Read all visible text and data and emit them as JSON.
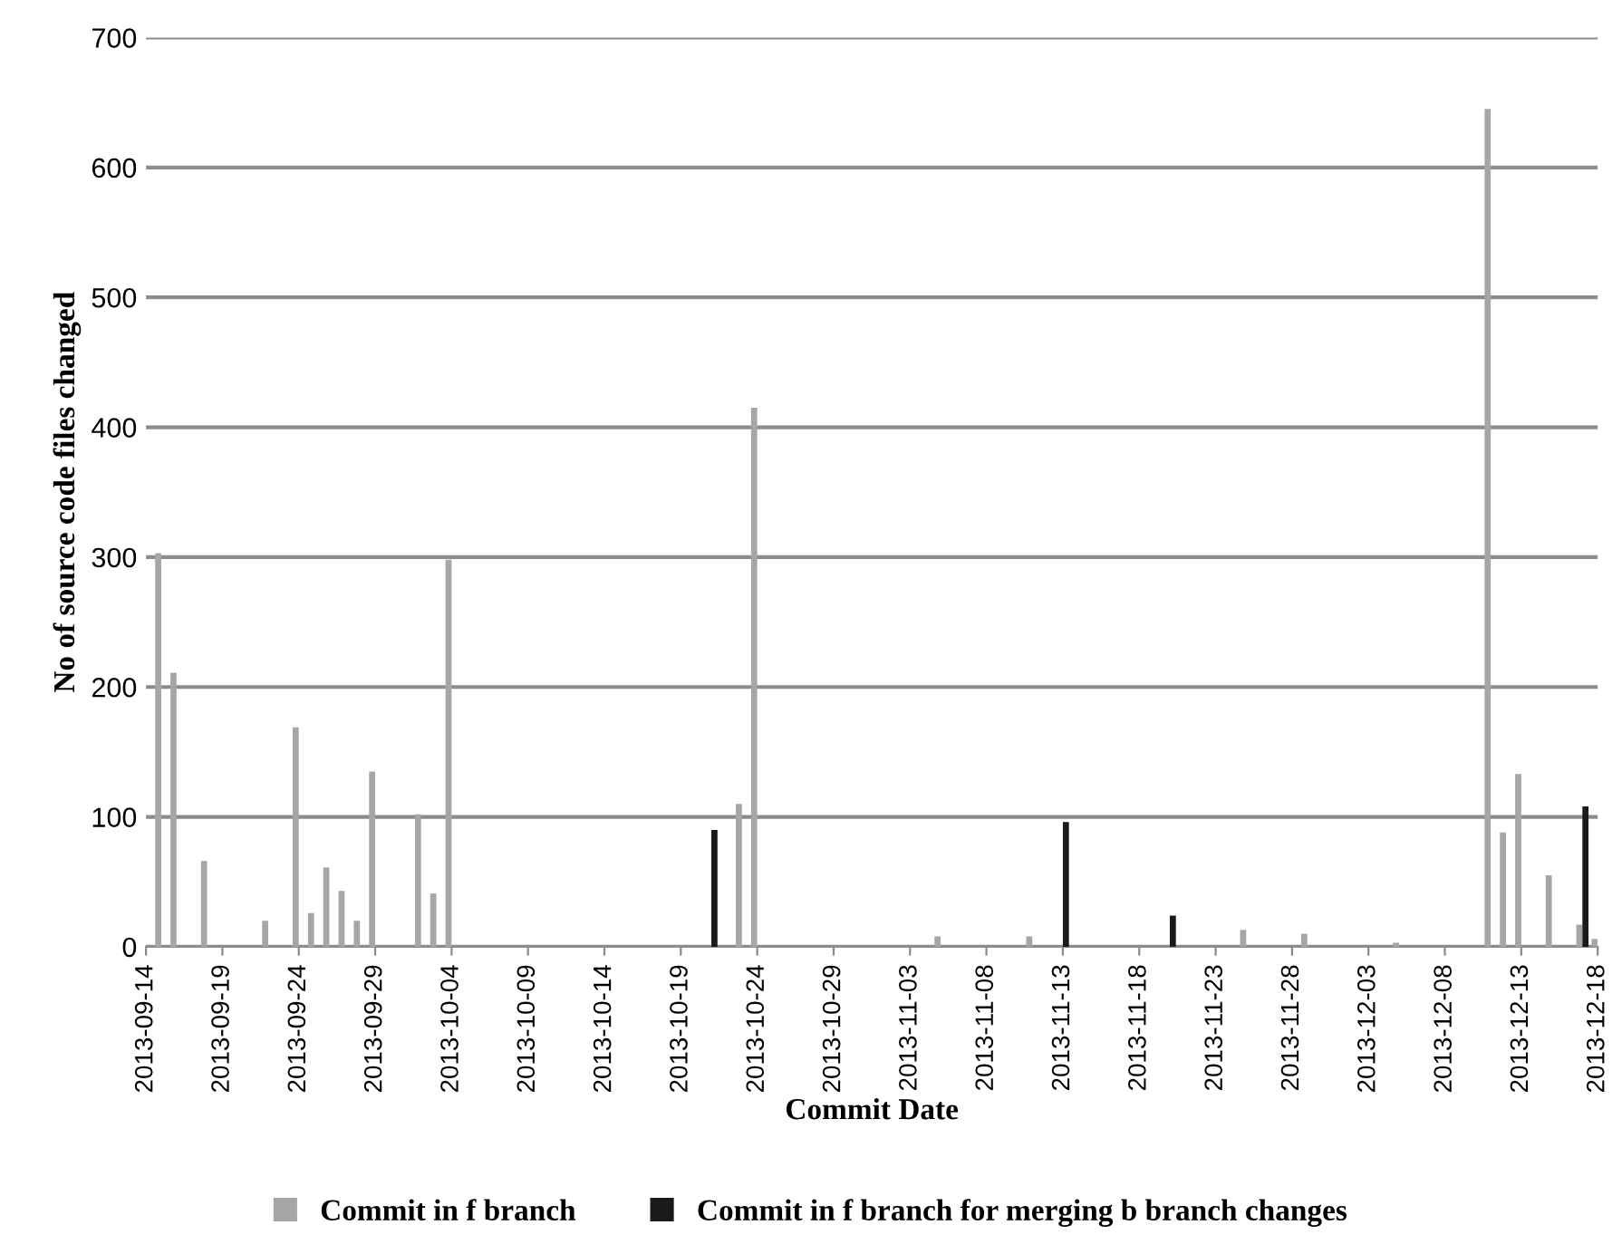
{
  "chart_data": {
    "type": "bar",
    "xlabel": "Commit Date",
    "ylabel": "No of source code files changed",
    "xlim": [
      "2013-09-14",
      "2013-12-18"
    ],
    "xticks": [
      "2013-09-14",
      "2013-09-19",
      "2013-09-24",
      "2013-09-29",
      "2013-10-04",
      "2013-10-09",
      "2013-10-14",
      "2013-10-19",
      "2013-10-24",
      "2013-10-29",
      "2013-11-03",
      "2013-11-08",
      "2013-11-13",
      "2013-11-18",
      "2013-11-23",
      "2013-11-28",
      "2013-12-03",
      "2013-12-08",
      "2013-12-13",
      "2013-12-18"
    ],
    "ylim": [
      0,
      700
    ],
    "yticks": [
      0,
      100,
      200,
      300,
      400,
      500,
      600,
      700
    ],
    "grid": "y",
    "legend": "bottom",
    "series": [
      {
        "name": "Commit in f branch",
        "color": "#a6a6a6",
        "x": [
          "2013-09-15",
          "2013-09-16",
          "2013-09-18",
          "2013-09-22",
          "2013-09-24",
          "2013-09-25",
          "2013-09-26",
          "2013-09-27",
          "2013-09-28",
          "2013-09-29",
          "2013-10-02",
          "2013-10-03",
          "2013-10-04",
          "2013-10-23",
          "2013-10-24",
          "2013-11-05",
          "2013-11-11",
          "2013-11-25",
          "2013-11-29",
          "2013-12-05",
          "2013-12-11",
          "2013-12-12",
          "2013-12-13",
          "2013-12-15",
          "2013-12-17",
          "2013-12-18"
        ],
        "values": [
          303,
          211,
          66,
          20,
          169,
          26,
          61,
          43,
          20,
          135,
          102,
          41,
          298,
          110,
          415,
          8,
          8,
          13,
          10,
          3,
          645,
          88,
          133,
          55,
          17,
          6
        ]
      },
      {
        "name": "Commit in f branch for merging b branch changes",
        "color": "#1a1a1a",
        "x": [
          "2013-10-21",
          "2013-11-13",
          "2013-11-20",
          "2013-12-17"
        ],
        "values": [
          90,
          96,
          24,
          108
        ]
      }
    ]
  }
}
